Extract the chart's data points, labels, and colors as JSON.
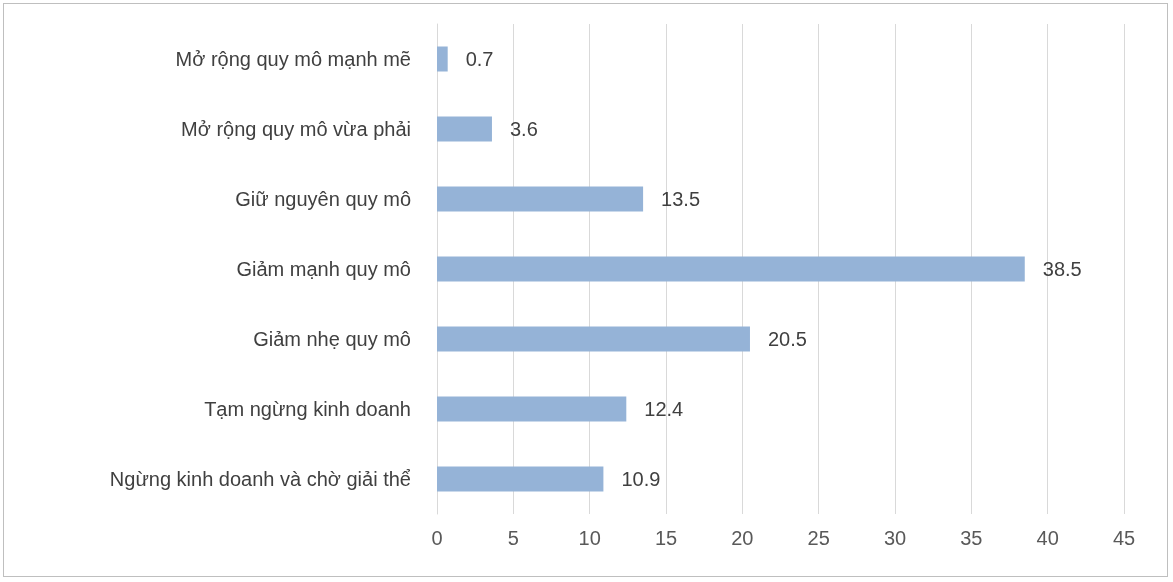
{
  "chart_data": {
    "type": "bar",
    "orientation": "horizontal",
    "categories": [
      "Mở rộng quy mô mạnh mẽ",
      "Mở rộng quy mô vừa phải",
      "Giữ nguyên quy mô",
      "Giảm mạnh quy mô",
      "Giảm nhẹ quy mô",
      "Tạm ngừng kinh doanh",
      "Ngừng kinh doanh và chờ giải thể"
    ],
    "values": [
      0.7,
      3.6,
      13.5,
      38.5,
      20.5,
      12.4,
      10.9
    ],
    "color": "#95b3d7",
    "xlim": [
      0,
      45
    ],
    "xticks": [
      0,
      5,
      10,
      15,
      20,
      25,
      30,
      35,
      40,
      45
    ],
    "grid": "x",
    "data_labels": true
  }
}
